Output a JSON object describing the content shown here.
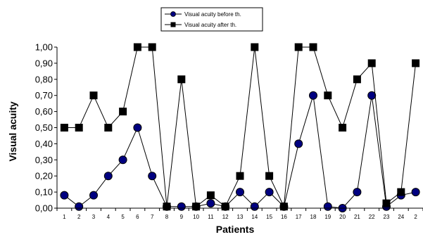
{
  "chart_data": {
    "type": "line",
    "title": "",
    "xlabel": "Patients",
    "ylabel": "Visual acuity",
    "categories": [
      "1",
      "2",
      "3",
      "4",
      "5",
      "6",
      "7",
      "8",
      "9",
      "10",
      "11",
      "12",
      "13",
      "14",
      "15",
      "16",
      "17",
      "18",
      "19",
      "20",
      "21",
      "22",
      "23",
      "24",
      "2"
    ],
    "y_tick_labels": [
      "0,00",
      "0,10",
      "0,20",
      "0,30",
      "0,40",
      "0,50",
      "0,60",
      "0,70",
      "0,80",
      "0,90",
      "1,00"
    ],
    "ylim": [
      0,
      1.0
    ],
    "grid": false,
    "legend_position": "top-center",
    "series": [
      {
        "name": "Visual acuity before th.",
        "marker": "circle",
        "marker_color": "#000080",
        "values": [
          0.08,
          0.01,
          0.08,
          0.2,
          0.3,
          0.5,
          0.2,
          0.01,
          0.01,
          0.01,
          0.03,
          0.01,
          0.1,
          0.01,
          0.1,
          0.01,
          0.4,
          0.7,
          0.01,
          0.0,
          0.1,
          0.7,
          0.01,
          0.08,
          0.1
        ]
      },
      {
        "name": "Visual acuity after th.",
        "marker": "square",
        "marker_color": "#000000",
        "values": [
          0.5,
          0.5,
          0.7,
          0.5,
          0.6,
          1.0,
          1.0,
          0.01,
          0.8,
          0.01,
          0.08,
          0.01,
          0.2,
          1.0,
          0.2,
          0.01,
          1.0,
          1.0,
          0.7,
          0.5,
          0.8,
          0.9,
          0.03,
          0.1,
          0.9
        ]
      }
    ]
  }
}
